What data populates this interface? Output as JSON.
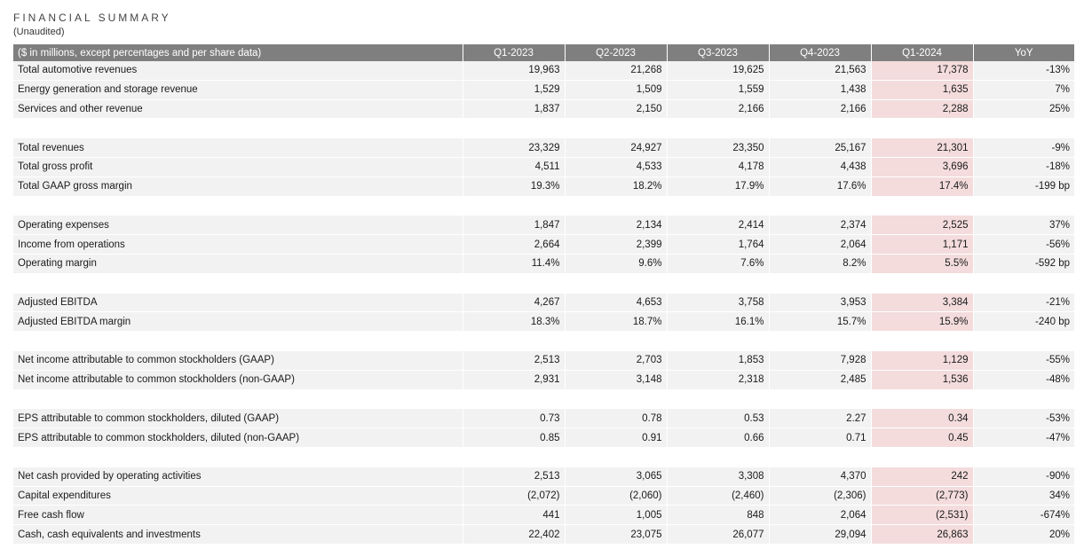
{
  "header": {
    "title": "FINANCIAL SUMMARY",
    "subtitle": "(Unaudited)"
  },
  "table": {
    "columns": [
      "($ in millions, except percentages and per share data)",
      "Q1-2023",
      "Q2-2023",
      "Q3-2023",
      "Q4-2023",
      "Q1-2024",
      "YoY"
    ],
    "highlight_color": "#f4dcdc",
    "groups": [
      [
        {
          "label": "Total automotive revenues",
          "values": [
            "19,963",
            "21,268",
            "19,625",
            "21,563",
            "17,378",
            "-13%"
          ]
        },
        {
          "label": "Energy generation and storage revenue",
          "values": [
            "1,529",
            "1,509",
            "1,559",
            "1,438",
            "1,635",
            "7%"
          ]
        },
        {
          "label": "Services and other revenue",
          "values": [
            "1,837",
            "2,150",
            "2,166",
            "2,166",
            "2,288",
            "25%"
          ]
        }
      ],
      [
        {
          "label": "Total revenues",
          "values": [
            "23,329",
            "24,927",
            "23,350",
            "25,167",
            "21,301",
            "-9%"
          ]
        },
        {
          "label": "Total gross profit",
          "values": [
            "4,511",
            "4,533",
            "4,178",
            "4,438",
            "3,696",
            "-18%"
          ]
        },
        {
          "label": "Total GAAP gross margin",
          "values": [
            "19.3%",
            "18.2%",
            "17.9%",
            "17.6%",
            "17.4%",
            "-199 bp"
          ]
        }
      ],
      [
        {
          "label": "Operating expenses",
          "values": [
            "1,847",
            "2,134",
            "2,414",
            "2,374",
            "2,525",
            "37%"
          ]
        },
        {
          "label": "Income from operations",
          "values": [
            "2,664",
            "2,399",
            "1,764",
            "2,064",
            "1,171",
            "-56%"
          ]
        },
        {
          "label": "Operating margin",
          "values": [
            "11.4%",
            "9.6%",
            "7.6%",
            "8.2%",
            "5.5%",
            "-592 bp"
          ]
        }
      ],
      [
        {
          "label": "Adjusted EBITDA",
          "values": [
            "4,267",
            "4,653",
            "3,758",
            "3,953",
            "3,384",
            "-21%"
          ]
        },
        {
          "label": "Adjusted EBITDA margin",
          "values": [
            "18.3%",
            "18.7%",
            "16.1%",
            "15.7%",
            "15.9%",
            "-240 bp"
          ]
        }
      ],
      [
        {
          "label": "Net income attributable to common stockholders (GAAP)",
          "values": [
            "2,513",
            "2,703",
            "1,853",
            "7,928",
            "1,129",
            "-55%"
          ]
        },
        {
          "label": "Net income attributable to common stockholders (non-GAAP)",
          "values": [
            "2,931",
            "3,148",
            "2,318",
            "2,485",
            "1,536",
            "-48%"
          ]
        }
      ],
      [
        {
          "label": "EPS attributable to common stockholders, diluted (GAAP)",
          "values": [
            "0.73",
            "0.78",
            "0.53",
            "2.27",
            "0.34",
            "-53%"
          ]
        },
        {
          "label": "EPS attributable to common stockholders, diluted (non-GAAP)",
          "values": [
            "0.85",
            "0.91",
            "0.66",
            "0.71",
            "0.45",
            "-47%"
          ]
        }
      ],
      [
        {
          "label": "Net cash provided by operating activities",
          "values": [
            "2,513",
            "3,065",
            "3,308",
            "4,370",
            "242",
            "-90%"
          ]
        },
        {
          "label": "Capital expenditures",
          "values": [
            "(2,072)",
            "(2,060)",
            "(2,460)",
            "(2,306)",
            "(2,773)",
            "34%"
          ]
        },
        {
          "label": "Free cash flow",
          "values": [
            "441",
            "1,005",
            "848",
            "2,064",
            "(2,531)",
            "-674%"
          ]
        },
        {
          "label": "Cash, cash equivalents and investments",
          "values": [
            "22,402",
            "23,075",
            "26,077",
            "29,094",
            "26,863",
            "20%"
          ]
        }
      ]
    ]
  }
}
